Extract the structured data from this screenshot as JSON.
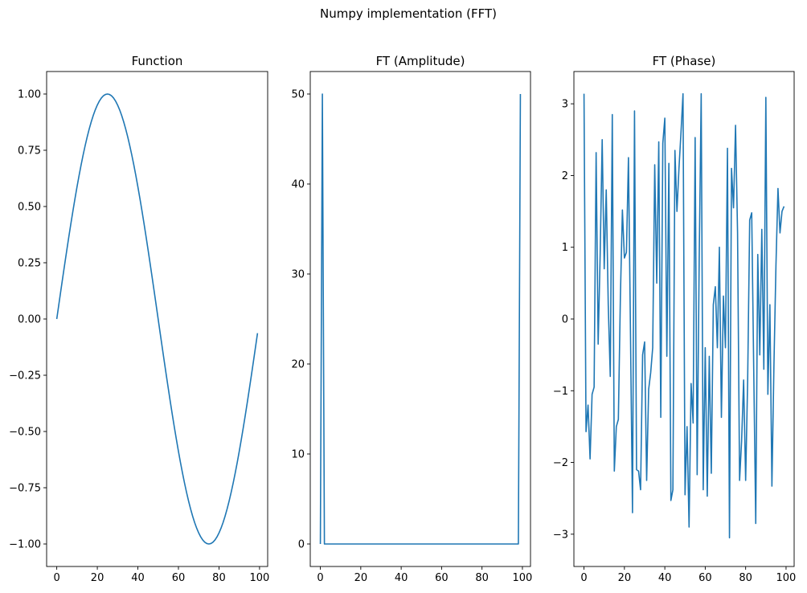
{
  "figure": {
    "title": "Numpy implementation (FFT)"
  },
  "chart_data": [
    {
      "type": "line",
      "title": "Function",
      "xlabel": "",
      "ylabel": "",
      "xlim": [
        -5,
        104
      ],
      "ylim": [
        -1.1,
        1.1
      ],
      "xticks": [
        0,
        20,
        40,
        60,
        80,
        100
      ],
      "yticks": [
        -1.0,
        -0.75,
        -0.5,
        -0.25,
        0.0,
        0.25,
        0.5,
        0.75,
        1.0
      ],
      "ytick_labels": [
        "−1.00",
        "−0.75",
        "−0.50",
        "−0.25",
        "0.00",
        "0.25",
        "0.50",
        "0.75",
        "1.00"
      ],
      "grid": false,
      "color": "#1f77b4",
      "function": "sin(2*pi*x/100)",
      "x": [
        0,
        5,
        10,
        15,
        20,
        25,
        30,
        35,
        40,
        45,
        50,
        55,
        60,
        65,
        70,
        75,
        80,
        85,
        90,
        95,
        99
      ],
      "y": [
        0.0,
        0.309,
        0.588,
        0.809,
        0.951,
        1.0,
        0.951,
        0.809,
        0.588,
        0.309,
        0.0,
        -0.309,
        -0.588,
        -0.809,
        -0.951,
        -1.0,
        -0.951,
        -0.809,
        -0.588,
        -0.309,
        -0.063
      ]
    },
    {
      "type": "line",
      "title": "FT (Amplitude)",
      "xlabel": "",
      "ylabel": "",
      "xlim": [
        -5,
        104
      ],
      "ylim": [
        -2.5,
        52.5
      ],
      "xticks": [
        0,
        20,
        40,
        60,
        80,
        100
      ],
      "yticks": [
        0,
        10,
        20,
        30,
        40,
        50
      ],
      "ytick_labels": [
        "0",
        "10",
        "20",
        "30",
        "40",
        "50"
      ],
      "grid": false,
      "color": "#1f77b4",
      "x": [
        0,
        1,
        2,
        98,
        99
      ],
      "y": [
        0,
        50,
        0,
        0,
        50
      ]
    },
    {
      "type": "line",
      "title": "FT (Phase)",
      "xlabel": "",
      "ylabel": "",
      "xlim": [
        -5,
        104
      ],
      "ylim": [
        -3.45,
        3.45
      ],
      "xticks": [
        0,
        20,
        40,
        60,
        80,
        100
      ],
      "yticks": [
        -3,
        -2,
        -1,
        0,
        1,
        2,
        3
      ],
      "ytick_labels": [
        "−3",
        "−2",
        "−1",
        "0",
        "1",
        "2",
        "3"
      ],
      "grid": false,
      "color": "#1f77b4",
      "x": [
        0,
        1,
        2,
        3,
        4,
        5,
        6,
        7,
        8,
        9,
        10,
        11,
        12,
        13,
        14,
        15,
        16,
        17,
        18,
        19,
        20,
        21,
        22,
        23,
        24,
        25,
        26,
        27,
        28,
        29,
        30,
        31,
        32,
        33,
        34,
        35,
        36,
        37,
        38,
        39,
        40,
        41,
        42,
        43,
        44,
        45,
        46,
        47,
        48,
        49,
        50,
        51,
        52,
        53,
        54,
        55,
        56,
        57,
        58,
        59,
        60,
        61,
        62,
        63,
        64,
        65,
        66,
        67,
        68,
        69,
        70,
        71,
        72,
        73,
        74,
        75,
        76,
        77,
        78,
        79,
        80,
        81,
        82,
        83,
        84,
        85,
        86,
        87,
        88,
        89,
        90,
        91,
        92,
        93,
        94,
        95,
        96,
        97,
        98,
        99
      ],
      "y": [
        3.14,
        -1.57,
        -1.2,
        -1.95,
        -1.05,
        -0.95,
        2.32,
        -0.35,
        0.9,
        2.5,
        0.7,
        1.8,
        0.2,
        -0.8,
        2.85,
        -2.12,
        -1.5,
        -1.4,
        0.3,
        1.52,
        0.85,
        0.93,
        2.25,
        -0.2,
        -2.7,
        2.9,
        -2.1,
        -2.12,
        -2.38,
        -0.5,
        -0.32,
        -2.25,
        -0.98,
        -0.75,
        -0.4,
        2.15,
        0.5,
        2.47,
        -1.37,
        2.45,
        2.8,
        -0.52,
        2.17,
        -2.53,
        -2.38,
        2.35,
        1.5,
        2.1,
        2.6,
        3.14,
        -2.45,
        -1.5,
        -2.9,
        -0.9,
        -1.45,
        2.53,
        -2.17,
        0.8,
        3.14,
        -2.38,
        -0.4,
        -2.47,
        -0.52,
        -2.15,
        0.2,
        0.45,
        -0.4,
        1.0,
        -1.37,
        0.32,
        -0.4,
        2.38,
        -3.05,
        2.1,
        1.55,
        2.7,
        1.2,
        -2.25,
        -1.7,
        -0.85,
        -2.25,
        -0.85,
        1.38,
        1.48,
        -0.7,
        -2.85,
        0.9,
        -0.5,
        1.25,
        -0.7,
        3.09,
        -1.05,
        0.2,
        -2.33,
        -0.65,
        0.75,
        1.82,
        1.2,
        1.5,
        1.57
      ]
    }
  ]
}
